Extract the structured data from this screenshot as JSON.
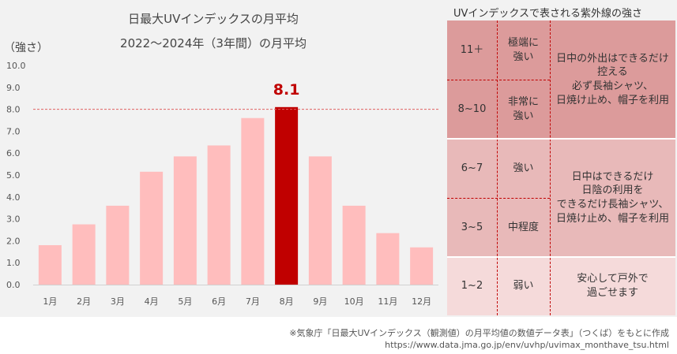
{
  "chart_data": {
    "type": "bar",
    "title": "日最大UVインデックスの月平均",
    "subtitle": "2022～2024年（3年間）の月平均",
    "ylabel": "（強さ）",
    "xlabel": "",
    "categories": [
      "1月",
      "2月",
      "3月",
      "4月",
      "5月",
      "6月",
      "7月",
      "8月",
      "9月",
      "10月",
      "11月",
      "12月"
    ],
    "values": [
      1.8,
      2.75,
      3.6,
      5.15,
      5.85,
      6.35,
      7.6,
      8.1,
      5.85,
      3.6,
      2.35,
      1.7
    ],
    "ylim": [
      0,
      10
    ],
    "yticks": [
      "0.0",
      "1.0",
      "2.0",
      "3.0",
      "4.0",
      "5.0",
      "6.0",
      "7.0",
      "8.0",
      "9.0",
      "10.0"
    ],
    "highlight_index": 7,
    "highlight_label": "8.1",
    "reference_line": 8.0,
    "colors": {
      "bar": "#ffbdbd",
      "highlight": "#c00000",
      "refline": "#e06060"
    }
  },
  "uv_table": {
    "title": "UVインデックスで表される紫外線の強さ",
    "rows": [
      {
        "index": "11＋",
        "level": [
          "極端に",
          "強い"
        ]
      },
      {
        "index": "8~10",
        "level": [
          "非常に",
          "強い"
        ]
      },
      {
        "index": "6~7",
        "level": [
          "強い"
        ]
      },
      {
        "index": "3~5",
        "level": [
          "中程度"
        ]
      },
      {
        "index": "1~2",
        "level": [
          "弱い"
        ]
      }
    ],
    "advice": [
      [
        "日中の外出はできるだけ",
        "控える",
        "必ず長袖シャツ、",
        "日焼け止め、帽子を利用"
      ],
      [
        "日中はできるだけ",
        "日陰の利用を",
        "できるだけ長袖シャツ、",
        "日焼け止め、帽子を利用"
      ],
      [
        "安心して戸外で",
        "過ごせます"
      ]
    ],
    "colors": {
      "high": "#dc9b9b",
      "mid": "#e8b9b9",
      "low": "#f5dada",
      "border": "#c00000"
    }
  },
  "source": {
    "line1": "※気象庁「日最大UVインデックス（観測値）の月平均値の数値データ表」（つくば）をもとに作成",
    "line2": "https://www.data.jma.go.jp/env/uvhp/uvimax_monthave_tsu.html"
  }
}
